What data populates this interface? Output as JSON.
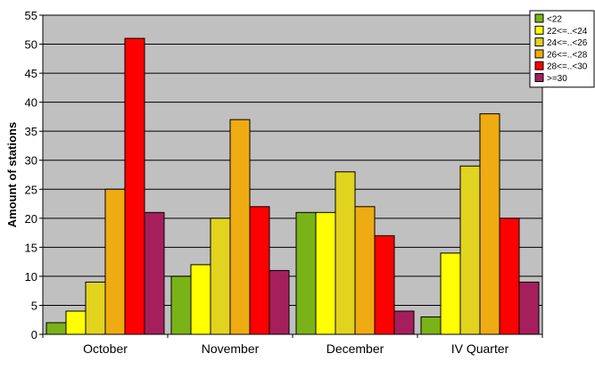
{
  "chart_data": {
    "type": "bar",
    "title": "",
    "xlabel": "",
    "ylabel": "Amount of stations",
    "ylim": [
      0,
      55
    ],
    "ytick_step": 5,
    "grid": true,
    "legend_position": "top-right",
    "plot_background": "#c0c0c0",
    "categories": [
      "October",
      "November",
      "December",
      "IV Quarter"
    ],
    "series": [
      {
        "name": "<22",
        "color": "#7ab317",
        "values": [
          2,
          10,
          21,
          3
        ]
      },
      {
        "name": "22<=..<24",
        "color": "#ffff00",
        "values": [
          4,
          12,
          21,
          14
        ]
      },
      {
        "name": "24<=..<26",
        "color": "#e2d31f",
        "values": [
          9,
          20,
          28,
          29
        ]
      },
      {
        "name": "26<=..<28",
        "color": "#efab12",
        "values": [
          25,
          37,
          22,
          38
        ]
      },
      {
        "name": "28<=..<30",
        "color": "#ff0000",
        "values": [
          51,
          22,
          17,
          20
        ]
      },
      {
        "name": ">=30",
        "color": "#a61f5d",
        "values": [
          21,
          11,
          4,
          9
        ]
      }
    ]
  }
}
